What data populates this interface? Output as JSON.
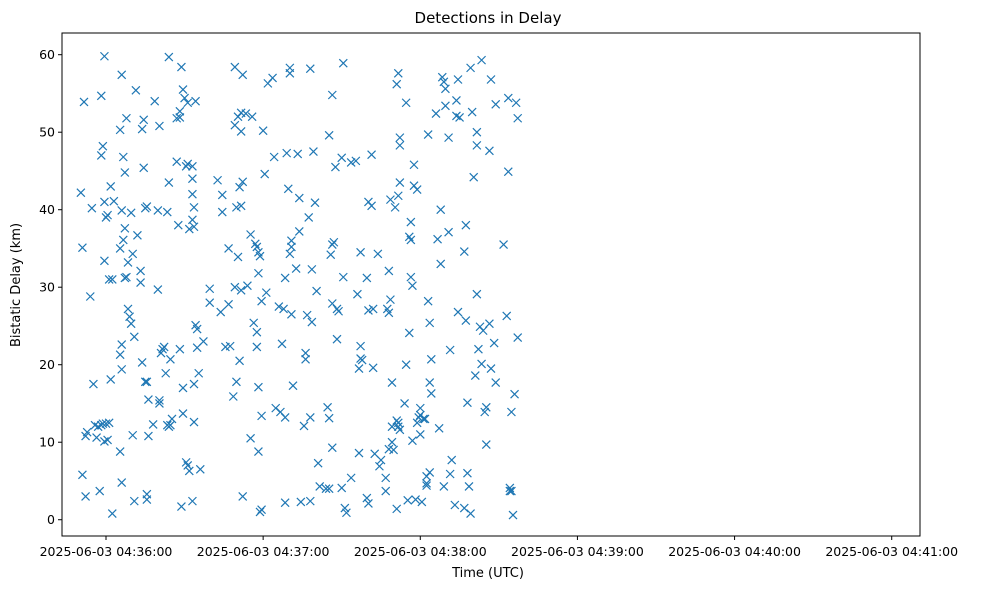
{
  "chart_data": {
    "type": "scatter",
    "title": "Detections in Delay",
    "xlabel": "Time (UTC)",
    "ylabel": "Bistatic Delay (km)",
    "x_unit": "minute (04:MM.fraction UTC)",
    "xlim": [
      35.72,
      41.18
    ],
    "ylim": [
      -2.1,
      62.8
    ],
    "x_ticks": [
      36,
      37,
      38,
      39,
      40,
      41
    ],
    "x_tick_labels": [
      "2025-06-03 04:36:00",
      "2025-06-03 04:37:00",
      "2025-06-03 04:38:00",
      "2025-06-03 04:39:00",
      "2025-06-03 04:40:00",
      "2025-06-03 04:41:00"
    ],
    "y_ticks": [
      0,
      10,
      20,
      30,
      40,
      50,
      60
    ],
    "y_tick_labels": [
      "0",
      "10",
      "20",
      "30",
      "40",
      "50",
      "60"
    ],
    "grid": false,
    "marker": "x",
    "color": "#1f77b4",
    "points": [
      [
        35.84,
        42.2
      ],
      [
        35.85,
        35.1
      ],
      [
        35.86,
        53.9
      ],
      [
        35.85,
        5.8
      ],
      [
        35.87,
        10.8
      ],
      [
        35.88,
        11.3
      ],
      [
        35.87,
        3.0
      ],
      [
        35.9,
        28.8
      ],
      [
        35.91,
        40.2
      ],
      [
        35.92,
        17.5
      ],
      [
        35.93,
        12.2
      ],
      [
        35.94,
        10.6
      ],
      [
        35.95,
        12.0
      ],
      [
        35.96,
        3.7
      ],
      [
        35.97,
        54.7
      ],
      [
        35.98,
        48.2
      ],
      [
        35.97,
        47.0
      ],
      [
        35.99,
        59.8
      ],
      [
        35.99,
        41.0
      ],
      [
        36.0,
        39.0
      ],
      [
        36.01,
        39.3
      ],
      [
        35.99,
        33.4
      ],
      [
        36.02,
        31.0
      ],
      [
        36.04,
        31.0
      ],
      [
        36.03,
        43.0
      ],
      [
        36.05,
        41.1
      ],
      [
        36.03,
        18.1
      ],
      [
        36.04,
        0.8
      ],
      [
        35.98,
        12.4
      ],
      [
        36.0,
        12.4
      ],
      [
        36.01,
        10.3
      ],
      [
        35.99,
        10.1
      ],
      [
        36.02,
        12.5
      ],
      [
        35.97,
        12.2
      ],
      [
        36.09,
        50.3
      ],
      [
        36.1,
        57.4
      ],
      [
        36.11,
        46.8
      ],
      [
        36.12,
        44.8
      ],
      [
        36.13,
        51.8
      ],
      [
        36.1,
        39.9
      ],
      [
        36.11,
        36.1
      ],
      [
        36.09,
        35.0
      ],
      [
        36.12,
        37.6
      ],
      [
        36.13,
        31.3
      ],
      [
        36.12,
        31.2
      ],
      [
        36.14,
        33.2
      ],
      [
        36.15,
        26.2
      ],
      [
        36.14,
        27.2
      ],
      [
        36.16,
        25.3
      ],
      [
        36.17,
        34.3
      ],
      [
        36.16,
        39.6
      ],
      [
        36.1,
        22.6
      ],
      [
        36.09,
        21.3
      ],
      [
        36.1,
        19.4
      ],
      [
        36.09,
        8.8
      ],
      [
        36.1,
        4.8
      ],
      [
        36.17,
        10.9
      ],
      [
        36.18,
        23.6
      ],
      [
        36.18,
        2.4
      ],
      [
        36.19,
        55.4
      ],
      [
        36.2,
        36.7
      ],
      [
        36.22,
        32.1
      ],
      [
        36.22,
        30.6
      ],
      [
        36.23,
        50.4
      ],
      [
        36.24,
        51.6
      ],
      [
        36.24,
        45.4
      ],
      [
        36.25,
        40.2
      ],
      [
        36.26,
        40.4
      ],
      [
        36.23,
        20.3
      ],
      [
        36.25,
        17.8
      ],
      [
        36.26,
        17.8
      ],
      [
        36.27,
        15.5
      ],
      [
        36.3,
        12.3
      ],
      [
        36.27,
        10.8
      ],
      [
        36.26,
        3.3
      ],
      [
        36.26,
        2.6
      ],
      [
        36.31,
        54.0
      ],
      [
        36.34,
        50.8
      ],
      [
        36.33,
        39.9
      ],
      [
        36.33,
        29.7
      ],
      [
        36.35,
        21.5
      ],
      [
        36.36,
        22.0
      ],
      [
        36.37,
        22.3
      ],
      [
        36.34,
        15.4
      ],
      [
        36.34,
        15.0
      ],
      [
        36.38,
        18.9
      ],
      [
        36.39,
        12.2
      ],
      [
        36.4,
        12.0
      ],
      [
        36.41,
        12.2
      ],
      [
        36.42,
        13.0
      ],
      [
        36.41,
        20.7
      ],
      [
        36.4,
        59.7
      ],
      [
        36.4,
        43.5
      ],
      [
        36.39,
        39.7
      ],
      [
        36.45,
        51.8
      ],
      [
        36.47,
        51.9
      ],
      [
        36.47,
        52.7
      ],
      [
        36.46,
        38.0
      ],
      [
        36.45,
        46.2
      ],
      [
        36.48,
        58.4
      ],
      [
        36.49,
        55.5
      ],
      [
        36.5,
        54.4
      ],
      [
        36.52,
        53.8
      ],
      [
        36.51,
        45.6
      ],
      [
        36.52,
        45.9
      ],
      [
        36.55,
        45.6
      ],
      [
        36.55,
        42.0
      ],
      [
        36.55,
        44.0
      ],
      [
        36.56,
        40.3
      ],
      [
        36.55,
        38.7
      ],
      [
        36.56,
        37.8
      ],
      [
        36.53,
        37.5
      ],
      [
        36.57,
        54.0
      ],
      [
        36.47,
        22.0
      ],
      [
        36.49,
        17.0
      ],
      [
        36.51,
        7.4
      ],
      [
        36.52,
        7.0
      ],
      [
        36.53,
        6.3
      ],
      [
        36.49,
        13.7
      ],
      [
        36.48,
        1.7
      ],
      [
        36.55,
        2.4
      ],
      [
        36.56,
        12.6
      ],
      [
        36.56,
        17.5
      ],
      [
        36.57,
        25.1
      ],
      [
        36.58,
        24.6
      ],
      [
        36.58,
        22.2
      ],
      [
        36.59,
        18.9
      ],
      [
        36.6,
        6.5
      ],
      [
        36.62,
        23.0
      ],
      [
        36.66,
        29.8
      ],
      [
        36.66,
        28.0
      ],
      [
        36.71,
        43.8
      ],
      [
        36.74,
        41.9
      ],
      [
        36.74,
        39.7
      ],
      [
        36.73,
        26.8
      ],
      [
        36.76,
        22.3
      ],
      [
        36.79,
        22.4
      ],
      [
        36.78,
        27.8
      ],
      [
        36.78,
        35.0
      ],
      [
        36.82,
        30.0
      ],
      [
        36.82,
        50.9
      ],
      [
        36.82,
        58.4
      ],
      [
        36.84,
        52.0
      ],
      [
        36.86,
        50.1
      ],
      [
        36.87,
        57.4
      ],
      [
        36.86,
        52.5
      ],
      [
        36.85,
        42.9
      ],
      [
        36.87,
        43.6
      ],
      [
        36.83,
        40.3
      ],
      [
        36.86,
        40.5
      ],
      [
        36.86,
        29.6
      ],
      [
        36.84,
        33.9
      ],
      [
        36.85,
        20.5
      ],
      [
        36.81,
        15.9
      ],
      [
        36.83,
        17.8
      ],
      [
        36.87,
        3.0
      ],
      [
        36.9,
        30.2
      ],
      [
        36.89,
        52.4
      ],
      [
        36.93,
        52.0
      ],
      [
        36.92,
        36.8
      ],
      [
        36.92,
        10.5
      ],
      [
        36.94,
        25.4
      ],
      [
        36.95,
        35.6
      ],
      [
        36.96,
        35.2
      ],
      [
        36.96,
        24.2
      ],
      [
        36.97,
        34.5
      ],
      [
        36.98,
        34.0
      ],
      [
        36.96,
        22.3
      ],
      [
        36.97,
        31.8
      ],
      [
        36.99,
        28.2
      ],
      [
        36.97,
        17.1
      ],
      [
        36.97,
        8.8
      ],
      [
        36.98,
        1.0
      ],
      [
        36.99,
        13.4
      ],
      [
        36.99,
        1.3
      ],
      [
        37.0,
        50.2
      ],
      [
        37.01,
        44.6
      ],
      [
        37.02,
        29.3
      ],
      [
        37.03,
        56.3
      ],
      [
        37.06,
        57.0
      ],
      [
        37.07,
        46.8
      ],
      [
        37.08,
        14.4
      ],
      [
        37.11,
        13.9
      ],
      [
        37.1,
        27.5
      ],
      [
        37.12,
        22.7
      ],
      [
        37.13,
        27.2
      ],
      [
        37.14,
        31.2
      ],
      [
        37.14,
        13.2
      ],
      [
        37.14,
        2.2
      ],
      [
        37.15,
        47.3
      ],
      [
        37.17,
        58.3
      ],
      [
        37.17,
        57.6
      ],
      [
        37.16,
        42.7
      ],
      [
        37.17,
        34.3
      ],
      [
        37.18,
        36.0
      ],
      [
        37.18,
        35.2
      ],
      [
        37.18,
        26.5
      ],
      [
        37.19,
        17.3
      ],
      [
        37.21,
        32.4
      ],
      [
        37.22,
        47.2
      ],
      [
        37.23,
        41.5
      ],
      [
        37.23,
        37.2
      ],
      [
        37.24,
        2.3
      ],
      [
        37.26,
        12.1
      ],
      [
        37.27,
        21.5
      ],
      [
        37.27,
        20.7
      ],
      [
        37.28,
        26.4
      ],
      [
        37.29,
        39.0
      ],
      [
        37.3,
        58.2
      ],
      [
        37.3,
        13.2
      ],
      [
        37.3,
        2.4
      ],
      [
        37.31,
        32.3
      ],
      [
        37.31,
        25.5
      ],
      [
        37.32,
        47.5
      ],
      [
        37.33,
        40.9
      ],
      [
        37.34,
        29.5
      ],
      [
        37.35,
        7.3
      ],
      [
        37.36,
        4.3
      ],
      [
        37.4,
        4.0
      ],
      [
        37.41,
        14.5
      ],
      [
        37.42,
        13.1
      ],
      [
        37.42,
        4.0
      ],
      [
        37.42,
        49.6
      ],
      [
        37.44,
        54.8
      ],
      [
        37.44,
        35.5
      ],
      [
        37.43,
        34.2
      ],
      [
        37.44,
        27.9
      ],
      [
        37.45,
        35.8
      ],
      [
        37.46,
        45.5
      ],
      [
        37.47,
        27.2
      ],
      [
        37.48,
        26.9
      ],
      [
        37.47,
        23.3
      ],
      [
        37.44,
        9.3
      ],
      [
        37.51,
        58.9
      ],
      [
        37.5,
        46.7
      ],
      [
        37.51,
        31.3
      ],
      [
        37.52,
        1.5
      ],
      [
        37.53,
        0.9
      ],
      [
        37.5,
        4.1
      ],
      [
        37.56,
        5.4
      ],
      [
        37.56,
        46.1
      ],
      [
        37.59,
        46.3
      ],
      [
        37.62,
        34.5
      ],
      [
        37.62,
        22.4
      ],
      [
        37.63,
        20.6
      ],
      [
        37.61,
        19.5
      ],
      [
        37.62,
        20.8
      ],
      [
        37.6,
        29.1
      ],
      [
        37.61,
        8.6
      ],
      [
        37.66,
        31.2
      ],
      [
        37.67,
        27.0
      ],
      [
        37.67,
        41.0
      ],
      [
        37.69,
        40.5
      ],
      [
        37.69,
        47.1
      ],
      [
        37.7,
        27.2
      ],
      [
        37.7,
        19.6
      ],
      [
        37.66,
        2.8
      ],
      [
        37.67,
        2.1
      ],
      [
        37.71,
        8.5
      ],
      [
        37.73,
        34.3
      ],
      [
        37.74,
        6.9
      ],
      [
        37.75,
        7.7
      ],
      [
        37.78,
        5.4
      ],
      [
        37.78,
        3.7
      ],
      [
        37.79,
        27.2
      ],
      [
        37.8,
        26.7
      ],
      [
        37.8,
        32.1
      ],
      [
        37.8,
        9.1
      ],
      [
        37.81,
        28.4
      ],
      [
        37.81,
        41.3
      ],
      [
        37.82,
        17.7
      ],
      [
        37.82,
        10.0
      ],
      [
        37.83,
        9.0
      ],
      [
        37.82,
        12.0
      ],
      [
        37.85,
        12.8
      ],
      [
        37.85,
        56.2
      ],
      [
        37.86,
        57.6
      ],
      [
        37.87,
        49.3
      ],
      [
        37.87,
        48.3
      ],
      [
        37.86,
        12.5
      ],
      [
        37.86,
        12.0
      ],
      [
        37.87,
        11.6
      ],
      [
        37.87,
        43.5
      ],
      [
        37.86,
        41.8
      ],
      [
        37.84,
        40.3
      ],
      [
        37.85,
        1.4
      ],
      [
        37.9,
        15.0
      ],
      [
        37.91,
        53.8
      ],
      [
        37.91,
        20.0
      ],
      [
        37.92,
        2.5
      ],
      [
        37.93,
        24.1
      ],
      [
        37.93,
        36.5
      ],
      [
        37.94,
        36.1
      ],
      [
        37.94,
        38.4
      ],
      [
        37.94,
        31.3
      ],
      [
        37.95,
        30.2
      ],
      [
        37.96,
        45.8
      ],
      [
        37.96,
        43.1
      ],
      [
        37.95,
        10.2
      ],
      [
        37.97,
        2.6
      ],
      [
        37.98,
        42.6
      ],
      [
        37.98,
        12.5
      ],
      [
        37.99,
        13.2
      ],
      [
        38.0,
        11.0
      ],
      [
        38.0,
        14.4
      ],
      [
        38.01,
        2.3
      ],
      [
        38.0,
        13.5
      ],
      [
        38.02,
        13.0
      ],
      [
        38.03,
        13.0
      ],
      [
        38.04,
        5.6
      ],
      [
        38.04,
        4.7
      ],
      [
        38.04,
        4.4
      ],
      [
        38.05,
        49.7
      ],
      [
        38.05,
        28.2
      ],
      [
        38.06,
        25.4
      ],
      [
        38.06,
        17.7
      ],
      [
        38.07,
        16.3
      ],
      [
        38.07,
        20.7
      ],
      [
        38.06,
        6.1
      ],
      [
        38.1,
        52.4
      ],
      [
        38.11,
        36.2
      ],
      [
        38.12,
        11.8
      ],
      [
        38.13,
        40.0
      ],
      [
        38.13,
        33.0
      ],
      [
        38.14,
        57.1
      ],
      [
        38.15,
        56.5
      ],
      [
        38.16,
        55.6
      ],
      [
        38.16,
        53.4
      ],
      [
        38.15,
        4.3
      ],
      [
        38.18,
        49.3
      ],
      [
        38.18,
        37.1
      ],
      [
        38.19,
        21.9
      ],
      [
        38.19,
        5.9
      ],
      [
        38.2,
        7.7
      ],
      [
        38.23,
        54.1
      ],
      [
        38.24,
        56.8
      ],
      [
        38.23,
        52.1
      ],
      [
        38.25,
        51.9
      ],
      [
        38.24,
        26.8
      ],
      [
        38.22,
        1.9
      ],
      [
        38.28,
        34.6
      ],
      [
        38.29,
        25.7
      ],
      [
        38.3,
        15.1
      ],
      [
        38.29,
        38.0
      ],
      [
        38.3,
        6.0
      ],
      [
        38.28,
        1.5
      ],
      [
        38.31,
        4.3
      ],
      [
        38.33,
        52.6
      ],
      [
        38.32,
        58.3
      ],
      [
        38.32,
        0.8
      ],
      [
        38.34,
        44.2
      ],
      [
        38.35,
        18.6
      ],
      [
        38.36,
        50.0
      ],
      [
        38.36,
        48.3
      ],
      [
        38.36,
        29.1
      ],
      [
        38.37,
        22.0
      ],
      [
        38.38,
        24.9
      ],
      [
        38.39,
        20.1
      ],
      [
        38.39,
        59.3
      ],
      [
        38.4,
        24.4
      ],
      [
        38.41,
        13.9
      ],
      [
        38.42,
        14.5
      ],
      [
        38.42,
        9.7
      ],
      [
        38.44,
        47.6
      ],
      [
        38.44,
        25.3
      ],
      [
        38.45,
        56.8
      ],
      [
        38.45,
        19.5
      ],
      [
        38.48,
        53.6
      ],
      [
        38.47,
        22.8
      ],
      [
        38.48,
        17.7
      ],
      [
        38.53,
        35.5
      ],
      [
        38.55,
        26.3
      ],
      [
        38.56,
        44.9
      ],
      [
        38.56,
        54.4
      ],
      [
        38.57,
        4.1
      ],
      [
        38.57,
        3.7
      ],
      [
        38.58,
        3.7
      ],
      [
        38.58,
        13.9
      ],
      [
        38.59,
        0.6
      ],
      [
        38.6,
        16.2
      ],
      [
        38.61,
        53.8
      ],
      [
        38.62,
        51.8
      ],
      [
        38.62,
        23.5
      ]
    ]
  }
}
